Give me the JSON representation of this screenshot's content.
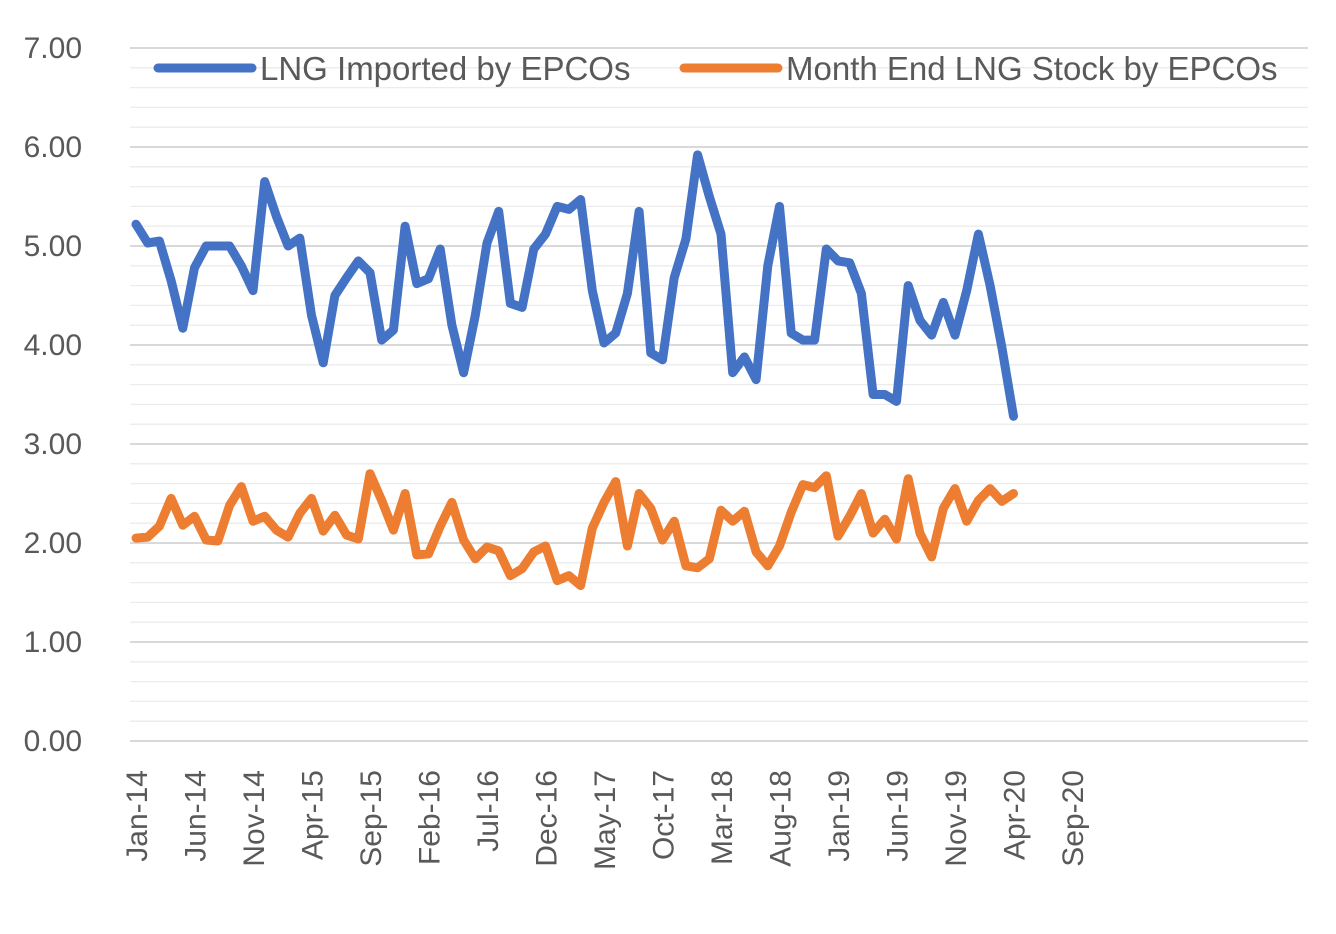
{
  "chart_data": {
    "type": "line",
    "title": "",
    "xlabel": "",
    "ylabel": "",
    "ylim": [
      0,
      7
    ],
    "y_ticks": [
      "0.00",
      "1.00",
      "2.00",
      "3.00",
      "4.00",
      "5.00",
      "6.00",
      "7.00"
    ],
    "x_tick_labels": [
      "Jan-14",
      "Jun-14",
      "Nov-14",
      "Apr-15",
      "Sep-15",
      "Feb-16",
      "Jul-16",
      "Dec-16",
      "May-17",
      "Oct-17",
      "Mar-18",
      "Aug-18",
      "Jan-19",
      "Jun-19",
      "Nov-19",
      "Apr-20",
      "Sep-20"
    ],
    "x_start": "Jan-14",
    "x_end": "Sep-20",
    "legend_position": "top",
    "series": [
      {
        "name": "LNG Imported by EPCOs",
        "color": "#4472C4",
        "values": [
          5.22,
          5.03,
          5.05,
          4.65,
          4.17,
          4.78,
          5.0,
          5.0,
          5.0,
          4.8,
          4.55,
          5.65,
          5.3,
          5.0,
          5.08,
          4.3,
          3.82,
          4.5,
          4.68,
          4.85,
          4.73,
          4.05,
          4.15,
          5.2,
          4.62,
          4.67,
          4.97,
          4.2,
          3.72,
          4.3,
          5.03,
          5.35,
          4.42,
          4.38,
          4.97,
          5.12,
          5.4,
          5.37,
          5.47,
          4.55,
          4.02,
          4.12,
          4.52,
          5.35,
          3.92,
          3.85,
          4.68,
          5.07,
          5.92,
          5.5,
          5.12,
          3.72,
          3.88,
          3.65,
          4.8,
          5.4,
          4.12,
          4.05,
          4.05,
          4.97,
          4.85,
          4.83,
          4.52,
          3.5,
          3.5,
          3.43,
          4.6,
          4.25,
          4.1,
          4.43,
          4.1,
          4.55,
          5.12,
          4.6,
          3.98,
          3.28
        ]
      },
      {
        "name": "Month End LNG Stock by EPCOs",
        "color": "#ED7D31",
        "values": [
          2.05,
          2.06,
          2.17,
          2.45,
          2.18,
          2.27,
          2.03,
          2.02,
          2.38,
          2.57,
          2.22,
          2.27,
          2.13,
          2.06,
          2.3,
          2.45,
          2.12,
          2.28,
          2.08,
          2.04,
          2.7,
          2.43,
          2.13,
          2.5,
          1.88,
          1.89,
          2.17,
          2.41,
          2.03,
          1.84,
          1.96,
          1.92,
          1.67,
          1.74,
          1.91,
          1.97,
          1.62,
          1.67,
          1.57,
          2.15,
          2.41,
          2.62,
          1.97,
          2.5,
          2.35,
          2.03,
          2.22,
          1.77,
          1.75,
          1.84,
          2.33,
          2.22,
          2.32,
          1.91,
          1.77,
          1.97,
          2.31,
          2.59,
          2.56,
          2.68,
          2.07,
          2.27,
          2.5,
          2.1,
          2.24,
          2.04,
          2.65,
          2.1,
          1.86,
          2.35,
          2.55,
          2.22,
          2.43,
          2.55,
          2.42,
          2.5
        ]
      }
    ]
  }
}
